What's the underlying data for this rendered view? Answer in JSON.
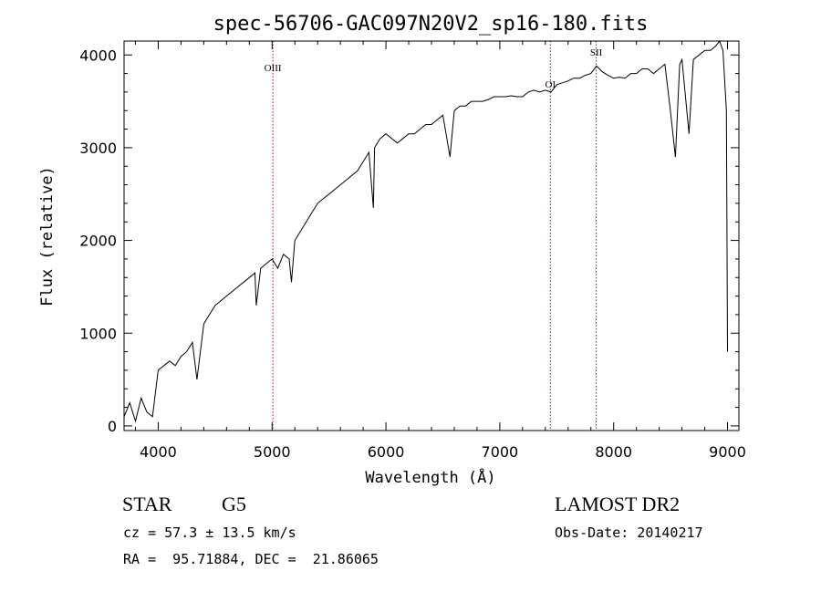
{
  "chart_data": {
    "type": "line",
    "title": "spec-56706-GAC097N20V2_sp16-180.fits",
    "xlabel": "Wavelength (Å)",
    "ylabel": "Flux (relative)",
    "xlim": [
      3700,
      9100
    ],
    "ylim": [
      -50,
      4150
    ],
    "x_ticks": [
      4000,
      5000,
      6000,
      7000,
      8000,
      9000
    ],
    "y_ticks": [
      0,
      1000,
      2000,
      3000,
      4000
    ],
    "grid": false,
    "series": [
      {
        "line_color": "#000000",
        "x": [
          3700,
          3750,
          3800,
          3850,
          3900,
          3950,
          4000,
          4050,
          4100,
          4150,
          4200,
          4250,
          4300,
          4340,
          4400,
          4450,
          4500,
          4550,
          4600,
          4650,
          4700,
          4750,
          4800,
          4850,
          4861,
          4900,
          4950,
          5000,
          5050,
          5100,
          5150,
          5170,
          5200,
          5250,
          5300,
          5350,
          5400,
          5450,
          5500,
          5550,
          5600,
          5650,
          5700,
          5750,
          5800,
          5850,
          5890,
          5900,
          5950,
          6000,
          6050,
          6100,
          6150,
          6200,
          6250,
          6300,
          6350,
          6400,
          6450,
          6500,
          6563,
          6600,
          6650,
          6700,
          6750,
          6800,
          6850,
          6900,
          6950,
          7000,
          7050,
          7100,
          7150,
          7200,
          7250,
          7300,
          7350,
          7400,
          7450,
          7500,
          7550,
          7600,
          7650,
          7700,
          7750,
          7800,
          7850,
          7900,
          7950,
          8000,
          8050,
          8100,
          8150,
          8200,
          8250,
          8300,
          8350,
          8400,
          8450,
          8498,
          8542,
          8580,
          8600,
          8662,
          8700,
          8750,
          8800,
          8850,
          8900,
          8930,
          8960,
          8990,
          9000
        ],
        "values": [
          100,
          250,
          50,
          300,
          150,
          100,
          600,
          650,
          700,
          650,
          750,
          800,
          900,
          500,
          1100,
          1200,
          1300,
          1350,
          1400,
          1450,
          1500,
          1550,
          1600,
          1650,
          1300,
          1700,
          1750,
          1800,
          1700,
          1850,
          1800,
          1550,
          2000,
          2100,
          2200,
          2300,
          2400,
          2450,
          2500,
          2550,
          2600,
          2650,
          2700,
          2750,
          2850,
          2950,
          2350,
          3000,
          3100,
          3150,
          3100,
          3050,
          3100,
          3150,
          3150,
          3200,
          3250,
          3250,
          3300,
          3350,
          2900,
          3400,
          3450,
          3450,
          3500,
          3500,
          3500,
          3520,
          3550,
          3550,
          3550,
          3560,
          3550,
          3550,
          3600,
          3620,
          3600,
          3620,
          3600,
          3680,
          3700,
          3720,
          3750,
          3750,
          3780,
          3800,
          3880,
          3820,
          3780,
          3750,
          3760,
          3750,
          3800,
          3800,
          3850,
          3850,
          3800,
          3850,
          3900,
          3400,
          2900,
          3900,
          3950,
          3150,
          3950,
          4000,
          4050,
          4050,
          4100,
          4150,
          4050,
          3400,
          800
        ]
      }
    ],
    "annotations": [
      {
        "label": "OIII",
        "x": 5007,
        "line_color": "#cc0000"
      },
      {
        "label": "OI",
        "x": 7444,
        "line_color": "#cc0000"
      },
      {
        "label": "SII",
        "x": 7847,
        "line_color": "#cc0000"
      }
    ]
  },
  "info": {
    "class": "STAR",
    "subclass": "G5",
    "survey": "LAMOST DR2",
    "cz": "cz = 57.3 ± 13.5 km/s",
    "obs_date": "Obs-Date: 20140217",
    "radec": "RA =  95.71884, DEC =  21.86065"
  }
}
